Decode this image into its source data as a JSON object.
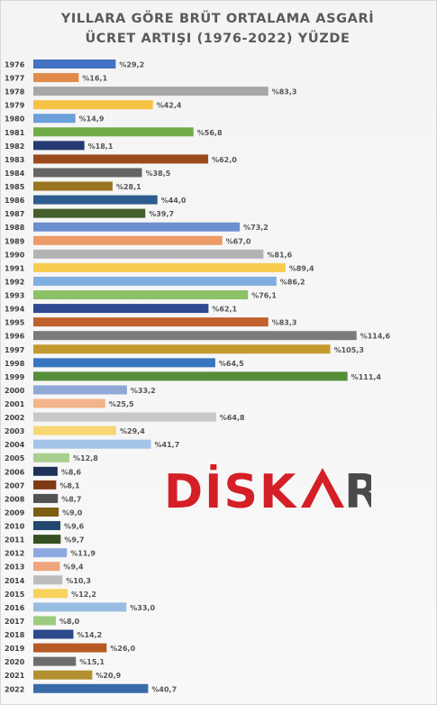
{
  "title_lines": [
    "YILLARA GÖRE BRÜT ORTALAMA ASGARİ",
    "ÜCRET ARTIŞI (1976-2022) YÜZDE"
  ],
  "logo": {
    "text": "DİSKAR",
    "primary_color": "#d41f26",
    "secondary_color": "#4a4a4a"
  },
  "chart_data": {
    "type": "bar",
    "orientation": "horizontal",
    "title": "YILLARA GÖRE BRÜT ORTALAMA ASGARİ ÜCRET ARTIŞI (1976-2022) YÜZDE",
    "xlabel": "",
    "ylabel": "",
    "xlim": [
      0,
      120
    ],
    "grid": false,
    "label_prefix": "%",
    "decimal_separator": ",",
    "categories": [
      "1976",
      "1977",
      "1978",
      "1979",
      "1980",
      "1981",
      "1982",
      "1983",
      "1984",
      "1985",
      "1986",
      "1987",
      "1988",
      "1989",
      "1990",
      "1991",
      "1992",
      "1993",
      "1994",
      "1995",
      "1996",
      "1997",
      "1998",
      "1999",
      "2000",
      "2001",
      "2002",
      "2003",
      "2004",
      "2005",
      "2006",
      "2007",
      "2008",
      "2009",
      "2010",
      "2011",
      "2012",
      "2013",
      "2014",
      "2015",
      "2016",
      "2017",
      "2018",
      "2019",
      "2020",
      "2021",
      "2022"
    ],
    "values": [
      29.2,
      16.1,
      83.3,
      42.4,
      14.9,
      56.8,
      18.1,
      62.0,
      38.5,
      28.1,
      44.0,
      39.7,
      73.2,
      67.0,
      81.6,
      89.4,
      86.2,
      76.1,
      62.1,
      83.3,
      114.6,
      105.3,
      64.5,
      111.4,
      33.2,
      25.5,
      64.8,
      29.4,
      41.7,
      12.8,
      8.6,
      8.1,
      8.7,
      9.0,
      9.6,
      9.7,
      11.9,
      9.4,
      10.3,
      12.2,
      33.0,
      8.0,
      14.2,
      26.0,
      15.1,
      20.9,
      40.7
    ],
    "value_labels": [
      "%29,2",
      "%16,1",
      "%83,3",
      "%42,4",
      "%14,9",
      "%56,8",
      "%18,1",
      "%62,0",
      "%38,5",
      "%28,1",
      "%44,0",
      "%39,7",
      "%73,2",
      "%67,0",
      "%81,6",
      "%89,4",
      "%86,2",
      "%76,1",
      "%62,1",
      "%83,3",
      "%114,6",
      "%105,3",
      "%64,5",
      "%111,4",
      "%33,2",
      "%25,5",
      "%64,8",
      "%29,4",
      "%41,7",
      "%12,8",
      "%8,6",
      "%8,1",
      "%8,7",
      "%9,0",
      "%9,6",
      "%9,7",
      "%11,9",
      "%9,4",
      "%10,3",
      "%12,2",
      "%33,0",
      "%8,0",
      "%14,2",
      "%26,0",
      "%15,1",
      "%20,9",
      "%40,7"
    ],
    "colors": [
      "#4472c4",
      "#e28a4a",
      "#a6a6a6",
      "#f6c244",
      "#6a9fd8",
      "#71ad47",
      "#243a72",
      "#9b4a1e",
      "#646464",
      "#997421",
      "#2e5c8f",
      "#445f2a",
      "#6c8fcf",
      "#ec9a66",
      "#b3b3b3",
      "#f7cb4d",
      "#80aee0",
      "#8cc167",
      "#2e4a92",
      "#c0612b",
      "#7b7b7b",
      "#c49a2e",
      "#3875c0",
      "#558e38",
      "#8fa8d6",
      "#f2b48a",
      "#c8c8c8",
      "#f8d773",
      "#a3c3e8",
      "#a9cf8f",
      "#1e3158",
      "#7f3a14",
      "#525252",
      "#7d5d12",
      "#22486f",
      "#365021",
      "#8ea9df",
      "#eea57c",
      "#bdbdbd",
      "#f8d35c",
      "#98bde3",
      "#9ccc7f",
      "#2b4b8c",
      "#b75b26",
      "#6d6d6d",
      "#b2902e",
      "#3a6aa8"
    ]
  }
}
